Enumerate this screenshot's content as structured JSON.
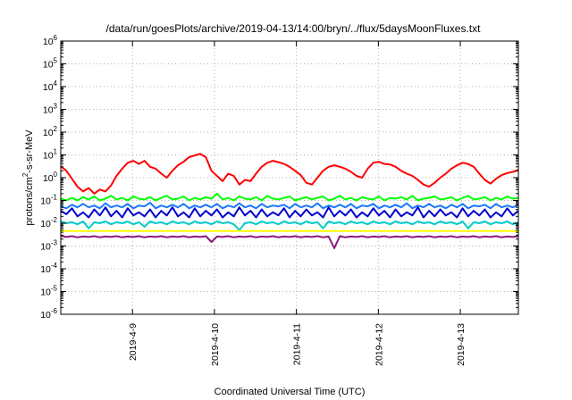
{
  "chart_data": {
    "type": "line",
    "title": "/data/run/goesPlots/archive/2019-04-13/14:00/bryn/../flux/5daysMoonFluxes.txt",
    "xlabel": "Coordinated Universal Time (UTC)",
    "ylabel": {
      "prefix": "protons/cm",
      "superscript": "2",
      "suffix": "-s-sr-MeV"
    },
    "x_range": [
      "2019-04-08T03:00",
      "2019-04-13T17:00"
    ],
    "x_ticks": [
      "2019-4-9",
      "2019-4-10",
      "2019-4-11",
      "2019-4-12",
      "2019-4-13"
    ],
    "y_scale": "log",
    "y_range": [
      1e-06,
      1000000.0
    ],
    "y_ticks": [
      {
        "base": "10",
        "exp": "-6"
      },
      {
        "base": "10",
        "exp": "-5"
      },
      {
        "base": "10",
        "exp": "-4"
      },
      {
        "base": "10",
        "exp": "-3"
      },
      {
        "base": "10",
        "exp": "-2"
      },
      {
        "base": "10",
        "exp": "-1"
      },
      {
        "base": "10",
        "exp": "0"
      },
      {
        "base": "10",
        "exp": "1"
      },
      {
        "base": "10",
        "exp": "2"
      },
      {
        "base": "10",
        "exp": "3"
      },
      {
        "base": "10",
        "exp": "4"
      },
      {
        "base": "10",
        "exp": "5"
      },
      {
        "base": "10",
        "exp": "6"
      }
    ],
    "grid": true,
    "legend": "none",
    "series": [
      {
        "color": "#ff0000",
        "values": [
          3.2,
          2.0,
          0.9,
          0.4,
          0.25,
          0.35,
          0.2,
          0.3,
          0.25,
          0.45,
          1.2,
          2.5,
          4.5,
          5.5,
          4.0,
          5.5,
          3.0,
          2.5,
          1.5,
          1.0,
          2.0,
          3.5,
          5.0,
          8.0,
          9.5,
          11.0,
          8.0,
          2.0,
          1.2,
          0.7,
          1.5,
          1.2,
          0.5,
          0.8,
          0.7,
          1.5,
          3.0,
          4.5,
          5.5,
          4.8,
          4.0,
          3.0,
          2.0,
          1.3,
          0.6,
          0.5,
          1.0,
          2.0,
          3.0,
          3.5,
          3.0,
          2.5,
          1.8,
          1.2,
          1.0,
          2.5,
          4.5,
          5.0,
          4.0,
          3.8,
          3.0,
          2.0,
          1.5,
          1.2,
          0.8,
          0.5,
          0.4,
          0.6,
          1.0,
          1.5,
          2.5,
          3.5,
          4.5,
          4.0,
          3.0,
          1.5,
          0.8,
          0.55,
          0.9,
          1.3,
          1.6,
          1.8,
          2.2
        ]
      },
      {
        "color": "#00ff00",
        "values": [
          0.12,
          0.1,
          0.13,
          0.1,
          0.14,
          0.11,
          0.15,
          0.1,
          0.12,
          0.16,
          0.11,
          0.13,
          0.1,
          0.15,
          0.12,
          0.11,
          0.14,
          0.1,
          0.13,
          0.16,
          0.11,
          0.12,
          0.15,
          0.1,
          0.13,
          0.11,
          0.14,
          0.12,
          0.2,
          0.11,
          0.13,
          0.1,
          0.15,
          0.12,
          0.11,
          0.14,
          0.1,
          0.16,
          0.12,
          0.11,
          0.13,
          0.15,
          0.1,
          0.12,
          0.14,
          0.11,
          0.13,
          0.15,
          0.1,
          0.12,
          0.16,
          0.11,
          0.13,
          0.1,
          0.14,
          0.12,
          0.11,
          0.15,
          0.1,
          0.13,
          0.12,
          0.14,
          0.11,
          0.16,
          0.1,
          0.12,
          0.13,
          0.15,
          0.11,
          0.12,
          0.14,
          0.1,
          0.13,
          0.16,
          0.11,
          0.12,
          0.14,
          0.1,
          0.13,
          0.11,
          0.15,
          0.12,
          0.13
        ]
      },
      {
        "color": "#1a78ff",
        "values": [
          0.055,
          0.045,
          0.065,
          0.05,
          0.07,
          0.05,
          0.06,
          0.045,
          0.075,
          0.05,
          0.06,
          0.05,
          0.07,
          0.045,
          0.06,
          0.055,
          0.08,
          0.045,
          0.06,
          0.05,
          0.065,
          0.05,
          0.07,
          0.045,
          0.06,
          0.05,
          0.065,
          0.05,
          0.07,
          0.045,
          0.06,
          0.05,
          0.075,
          0.05,
          0.06,
          0.045,
          0.07,
          0.05,
          0.06,
          0.055,
          0.065,
          0.045,
          0.07,
          0.05,
          0.06,
          0.05,
          0.075,
          0.045,
          0.06,
          0.05,
          0.065,
          0.05,
          0.07,
          0.045,
          0.06,
          0.055,
          0.07,
          0.045,
          0.06,
          0.05,
          0.065,
          0.05,
          0.075,
          0.045,
          0.06,
          0.05,
          0.07,
          0.05,
          0.06,
          0.045,
          0.065,
          0.05,
          0.07,
          0.045,
          0.06,
          0.055,
          0.065,
          0.045,
          0.07,
          0.05,
          0.06,
          0.05,
          0.065
        ]
      },
      {
        "color": "#0000cc",
        "values": [
          0.035,
          0.025,
          0.045,
          0.02,
          0.03,
          0.018,
          0.04,
          0.022,
          0.05,
          0.02,
          0.035,
          0.018,
          0.045,
          0.022,
          0.03,
          0.02,
          0.04,
          0.018,
          0.035,
          0.022,
          0.05,
          0.02,
          0.03,
          0.018,
          0.045,
          0.02,
          0.035,
          0.022,
          0.04,
          0.018,
          0.03,
          0.02,
          0.05,
          0.022,
          0.035,
          0.018,
          0.04,
          0.02,
          0.03,
          0.022,
          0.045,
          0.018,
          0.035,
          0.02,
          0.04,
          0.022,
          0.03,
          0.018,
          0.05,
          0.02,
          0.035,
          0.022,
          0.04,
          0.018,
          0.03,
          0.02,
          0.045,
          0.022,
          0.035,
          0.018,
          0.04,
          0.02,
          0.03,
          0.022,
          0.05,
          0.018,
          0.035,
          0.02,
          0.04,
          0.022,
          0.03,
          0.018,
          0.045,
          0.02,
          0.035,
          0.022,
          0.04,
          0.018,
          0.03,
          0.02,
          0.045,
          0.022,
          0.035
        ]
      },
      {
        "color": "#00cccc",
        "values": [
          0.012,
          0.01,
          0.011,
          0.009,
          0.012,
          0.006,
          0.011,
          0.01,
          0.012,
          0.009,
          0.011,
          0.01,
          0.012,
          0.009,
          0.011,
          0.007,
          0.012,
          0.01,
          0.011,
          0.009,
          0.012,
          0.01,
          0.011,
          0.009,
          0.012,
          0.01,
          0.011,
          0.009,
          0.012,
          0.01,
          0.011,
          0.009,
          0.005,
          0.01,
          0.011,
          0.009,
          0.012,
          0.01,
          0.011,
          0.009,
          0.012,
          0.01,
          0.011,
          0.009,
          0.012,
          0.01,
          0.011,
          0.006,
          0.012,
          0.01,
          0.011,
          0.009,
          0.012,
          0.01,
          0.011,
          0.009,
          0.012,
          0.01,
          0.011,
          0.009,
          0.012,
          0.01,
          0.011,
          0.009,
          0.012,
          0.01,
          0.011,
          0.009,
          0.012,
          0.01,
          0.011,
          0.009,
          0.012,
          0.006,
          0.011,
          0.01,
          0.012,
          0.009,
          0.011,
          0.01,
          0.012,
          0.009,
          0.011
        ]
      },
      {
        "color": "#ffff00",
        "values": [
          0.0045,
          0.0045,
          0.0045,
          0.0045,
          0.0045,
          0.0045,
          0.0045,
          0.0045,
          0.0045,
          0.0045,
          0.0045,
          0.0045,
          0.0045,
          0.0045,
          0.0045,
          0.0045,
          0.0045,
          0.0045,
          0.0045,
          0.0045,
          0.0045,
          0.0045,
          0.0045,
          0.0045,
          0.0045,
          0.0045,
          0.0045,
          0.0045,
          0.0045,
          0.0045,
          0.0045,
          0.0045,
          0.0045,
          0.0045,
          0.0045,
          0.0045,
          0.0045,
          0.0045,
          0.0045,
          0.0045,
          0.0045,
          0.0045,
          0.0045,
          0.0045,
          0.0045,
          0.0045,
          0.0045,
          0.0045,
          0.0045,
          0.0045,
          0.0045,
          0.0045,
          0.0045,
          0.0045,
          0.0045,
          0.0045,
          0.0045,
          0.0045,
          0.0045,
          0.0045,
          0.0045,
          0.0045,
          0.0045,
          0.0045,
          0.0045,
          0.0045,
          0.0045,
          0.0045,
          0.0045,
          0.0045,
          0.0045,
          0.0045,
          0.0045,
          0.0045,
          0.0045,
          0.0045,
          0.0045,
          0.0045,
          0.0045,
          0.0045,
          0.0045,
          0.0045,
          0.0045
        ]
      },
      {
        "color": "#8b1a7a",
        "values": [
          0.0028,
          0.0025,
          0.0027,
          0.0024,
          0.0026,
          0.0025,
          0.0027,
          0.0024,
          0.0026,
          0.0025,
          0.0027,
          0.0024,
          0.0026,
          0.0025,
          0.0027,
          0.0024,
          0.0026,
          0.0025,
          0.0027,
          0.0024,
          0.0026,
          0.0025,
          0.0027,
          0.0024,
          0.0026,
          0.0025,
          0.0027,
          0.0015,
          0.0026,
          0.0025,
          0.0027,
          0.0024,
          0.0026,
          0.0025,
          0.0027,
          0.0024,
          0.0026,
          0.0025,
          0.0027,
          0.0024,
          0.0026,
          0.0025,
          0.0027,
          0.0024,
          0.0026,
          0.0025,
          0.0027,
          0.0024,
          0.0026,
          0.0008,
          0.0027,
          0.0024,
          0.0026,
          0.0025,
          0.0027,
          0.0024,
          0.0026,
          0.0025,
          0.0027,
          0.0024,
          0.0026,
          0.0025,
          0.0027,
          0.0024,
          0.0026,
          0.0025,
          0.0027,
          0.0024,
          0.0026,
          0.0025,
          0.0027,
          0.0024,
          0.0026,
          0.0025,
          0.0027,
          0.0024,
          0.0026,
          0.0025,
          0.0027,
          0.0024,
          0.0026,
          0.0025,
          0.0027
        ]
      }
    ]
  }
}
